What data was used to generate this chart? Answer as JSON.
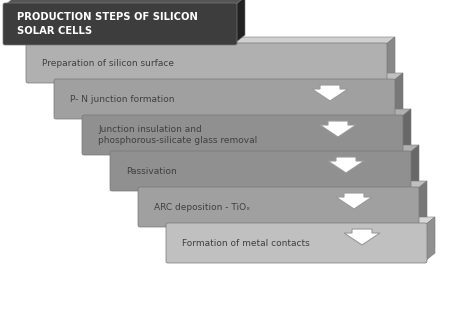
{
  "title": "PRODUCTION STEPS OF SILICON\nSOLAR CELLS",
  "title_color": "#FFFFFF",
  "title_bg": "#3d3d3d",
  "title_shadow": "#222222",
  "steps": [
    "Preparation of silicon surface",
    "P- N junction formation",
    "Junction insulation and\nphosphorous-silicate glass removal",
    "Passivation",
    "ARC deposition - TiOₓ",
    "Formation of metal contacts"
  ],
  "step_face_colors": [
    "#b0b0b0",
    "#a0a0a0",
    "#909090",
    "#909090",
    "#a0a0a0",
    "#c0c0c0"
  ],
  "step_top_colors": [
    "#d0d0d0",
    "#c0c0c0",
    "#b0b0b0",
    "#b0b0b0",
    "#c0c0c0",
    "#d8d8d8"
  ],
  "step_right_colors": [
    "#888888",
    "#787878",
    "#686868",
    "#686868",
    "#787878",
    "#909090"
  ],
  "bg_color": "#ffffff",
  "arrow_fill": "#ffffff",
  "arrow_edge": "#999999",
  "text_color": "#404040",
  "fig_width": 4.74,
  "fig_height": 3.21,
  "dpi": 100
}
